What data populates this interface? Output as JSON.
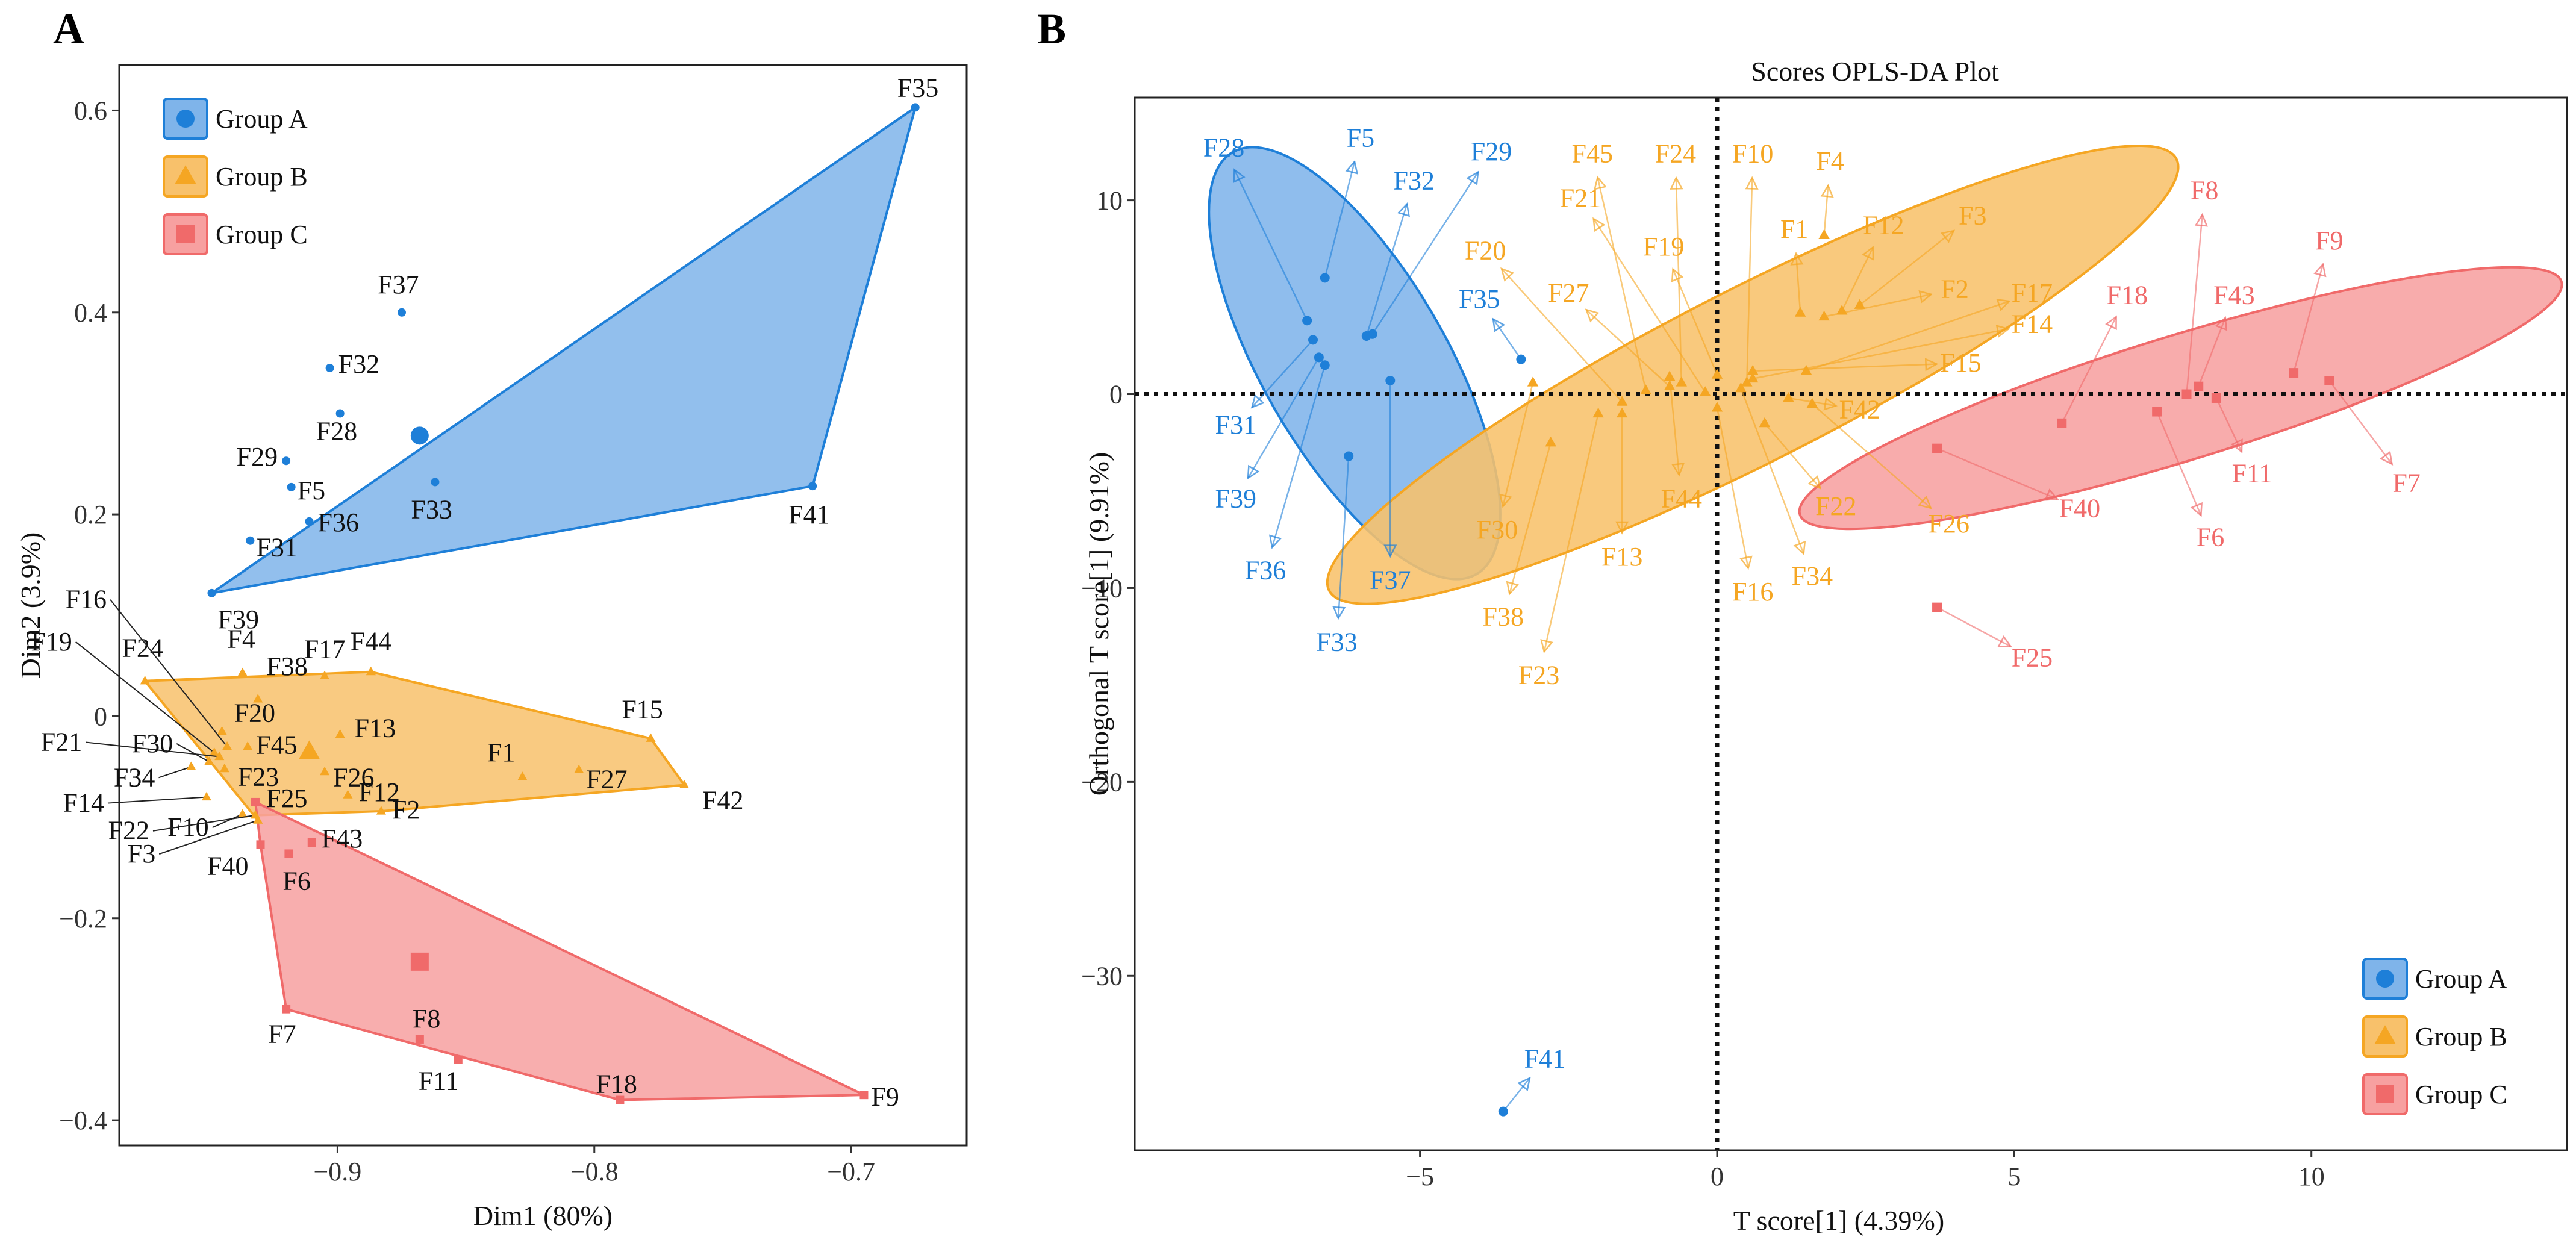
{
  "colors": {
    "A": "#1E7FD8",
    "A_fill": "#7FB4EA",
    "B": "#F5A623",
    "B_fill": "#F8C16B",
    "C": "#F06A6A",
    "C_fill": "#F7A0A0"
  },
  "legend": [
    {
      "group": "A",
      "label": "Group A",
      "shape": "circle"
    },
    {
      "group": "B",
      "label": "Group B",
      "shape": "triangle"
    },
    {
      "group": "C",
      "label": "Group C",
      "shape": "square"
    }
  ],
  "chart_data": [
    {
      "panel": "A",
      "type": "scatter",
      "title": "",
      "xlabel": "Dim1 (80%)",
      "ylabel": "Dim2 (3.9%)",
      "xlim": [
        -0.985,
        -0.655
      ],
      "ylim": [
        -0.425,
        0.645
      ],
      "xticks": [
        -0.9,
        -0.8,
        -0.7
      ],
      "yticks": [
        -0.4,
        -0.2,
        0,
        0.2,
        0.4,
        0.6
      ],
      "xtick_labels": [
        "−0.9",
        "−0.8",
        "−0.7"
      ],
      "ytick_labels": [
        "−0.4",
        "−0.2",
        "0",
        "0.2",
        "0.4",
        "0.6"
      ],
      "hulls": {
        "A": [
          "F39",
          "F35",
          "F41"
        ],
        "B": [
          "F24",
          "F44",
          "F15",
          "F42",
          "F2",
          "F22",
          "F3"
        ],
        "C": [
          "F25",
          "F9",
          "F18",
          "F7",
          "F40"
        ]
      },
      "centroids": [
        {
          "group": "A",
          "x": -0.868,
          "y": 0.278
        },
        {
          "group": "B",
          "x": -0.911,
          "y": -0.035
        },
        {
          "group": "C",
          "x": -0.868,
          "y": -0.243
        }
      ],
      "points": [
        {
          "label": "F35",
          "group": "A",
          "x": -0.675,
          "y": 0.603
        },
        {
          "label": "F37",
          "group": "A",
          "x": -0.875,
          "y": 0.4
        },
        {
          "label": "F32",
          "group": "A",
          "x": -0.903,
          "y": 0.345
        },
        {
          "label": "F28",
          "group": "A",
          "x": -0.899,
          "y": 0.3
        },
        {
          "label": "F29",
          "group": "A",
          "x": -0.92,
          "y": 0.253
        },
        {
          "label": "F5",
          "group": "A",
          "x": -0.918,
          "y": 0.227
        },
        {
          "label": "F36",
          "group": "A",
          "x": -0.911,
          "y": 0.193
        },
        {
          "label": "F31",
          "group": "A",
          "x": -0.934,
          "y": 0.174
        },
        {
          "label": "F33",
          "group": "A",
          "x": -0.862,
          "y": 0.232
        },
        {
          "label": "F41",
          "group": "A",
          "x": -0.715,
          "y": 0.228
        },
        {
          "label": "F39",
          "group": "A",
          "x": -0.949,
          "y": 0.122
        },
        {
          "label": "F24",
          "group": "B",
          "x": -0.975,
          "y": 0.035
        },
        {
          "label": "F4",
          "group": "B",
          "x": -0.937,
          "y": 0.043
        },
        {
          "label": "F38",
          "group": "B",
          "x": -0.931,
          "y": 0.017
        },
        {
          "label": "F44",
          "group": "B",
          "x": -0.887,
          "y": 0.044
        },
        {
          "label": "F17",
          "group": "B",
          "x": -0.905,
          "y": 0.04
        },
        {
          "label": "F20",
          "group": "B",
          "x": -0.945,
          "y": -0.015
        },
        {
          "label": "F13",
          "group": "B",
          "x": -0.899,
          "y": -0.018
        },
        {
          "label": "F45",
          "group": "B",
          "x": -0.935,
          "y": -0.03
        },
        {
          "label": "F26",
          "group": "B",
          "x": -0.905,
          "y": -0.055
        },
        {
          "label": "F16",
          "group": "B",
          "x": -0.943,
          "y": -0.03
        },
        {
          "label": "F19",
          "group": "B",
          "x": -0.948,
          "y": -0.036
        },
        {
          "label": "F21",
          "group": "B",
          "x": -0.946,
          "y": -0.04
        },
        {
          "label": "F30",
          "group": "B",
          "x": -0.95,
          "y": -0.045
        },
        {
          "label": "F34",
          "group": "B",
          "x": -0.957,
          "y": -0.05
        },
        {
          "label": "F23",
          "group": "B",
          "x": -0.944,
          "y": -0.052
        },
        {
          "label": "F14",
          "group": "B",
          "x": -0.951,
          "y": -0.08
        },
        {
          "label": "F10",
          "group": "B",
          "x": -0.937,
          "y": -0.097
        },
        {
          "label": "F22",
          "group": "B",
          "x": -0.932,
          "y": -0.098
        },
        {
          "label": "F3",
          "group": "B",
          "x": -0.931,
          "y": -0.103
        },
        {
          "label": "F12",
          "group": "B",
          "x": -0.896,
          "y": -0.078
        },
        {
          "label": "F2",
          "group": "B",
          "x": -0.883,
          "y": -0.094
        },
        {
          "label": "F1",
          "group": "B",
          "x": -0.828,
          "y": -0.06
        },
        {
          "label": "F27",
          "group": "B",
          "x": -0.806,
          "y": -0.053
        },
        {
          "label": "F15",
          "group": "B",
          "x": -0.778,
          "y": -0.022
        },
        {
          "label": "F42",
          "group": "B",
          "x": -0.765,
          "y": -0.068
        },
        {
          "label": "F25",
          "group": "C",
          "x": -0.932,
          "y": -0.085
        },
        {
          "label": "F40",
          "group": "C",
          "x": -0.93,
          "y": -0.127
        },
        {
          "label": "F6",
          "group": "C",
          "x": -0.919,
          "y": -0.136
        },
        {
          "label": "F43",
          "group": "C",
          "x": -0.91,
          "y": -0.125
        },
        {
          "label": "F7",
          "group": "C",
          "x": -0.92,
          "y": -0.29
        },
        {
          "label": "F8",
          "group": "C",
          "x": -0.868,
          "y": -0.32
        },
        {
          "label": "F11",
          "group": "C",
          "x": -0.853,
          "y": -0.34
        },
        {
          "label": "F18",
          "group": "C",
          "x": -0.79,
          "y": -0.38
        },
        {
          "label": "F9",
          "group": "C",
          "x": -0.695,
          "y": -0.375
        }
      ]
    },
    {
      "panel": "B",
      "type": "scatter",
      "title": "Scores OPLS-DA Plot",
      "xlabel": "T score[1] (4.39%)",
      "ylabel": "Orthogonal T score[1] (9.91%)",
      "xlim": [
        -9.8,
        14.3
      ],
      "ylim": [
        -39.0,
        15.3
      ],
      "xticks": [
        -5,
        0,
        5,
        10
      ],
      "yticks": [
        -30,
        -20,
        -10,
        0,
        10
      ],
      "xtick_labels": [
        "−5",
        "0",
        "5",
        "10"
      ],
      "ytick_labels": [
        "−30",
        "−20",
        "−10",
        "0",
        "10"
      ],
      "ellipses": [
        {
          "group": "A",
          "cx": -6.1,
          "cy": 1.6,
          "rx": 4.1,
          "ry": 1.55,
          "angle": -60
        },
        {
          "group": "B",
          "cx": 0.6,
          "cy": 1.0,
          "rx": 8.0,
          "ry": 1.45,
          "angle": 27
        },
        {
          "group": "C",
          "cx": 7.8,
          "cy": -0.2,
          "rx": 6.7,
          "ry": 1.05,
          "angle": 17
        }
      ],
      "points": [
        {
          "label": "F28",
          "group": "A",
          "x": -6.9,
          "y": 3.8,
          "lx": -8.3,
          "ly": 12.7
        },
        {
          "label": "F5",
          "group": "A",
          "x": -6.6,
          "y": 6.0,
          "lx": -6.0,
          "ly": 13.2
        },
        {
          "label": "F32",
          "group": "A",
          "x": -5.9,
          "y": 3.0,
          "lx": -5.1,
          "ly": 11.0
        },
        {
          "label": "F29",
          "group": "A",
          "x": -5.8,
          "y": 3.1,
          "lx": -3.8,
          "ly": 12.5
        },
        {
          "label": "F35",
          "group": "A",
          "x": -3.3,
          "y": 1.8,
          "lx": -4.0,
          "ly": 4.9
        },
        {
          "label": "F31",
          "group": "A",
          "x": -6.8,
          "y": 2.8,
          "lx": -8.1,
          "ly": -1.6
        },
        {
          "label": "F39",
          "group": "A",
          "x": -6.7,
          "y": 1.9,
          "lx": -8.1,
          "ly": -5.4
        },
        {
          "label": "F36",
          "group": "A",
          "x": -6.6,
          "y": 1.5,
          "lx": -7.6,
          "ly": -9.1
        },
        {
          "label": "F33",
          "group": "A",
          "x": -6.2,
          "y": -3.2,
          "lx": -6.4,
          "ly": -12.8
        },
        {
          "label": "F37",
          "group": "A",
          "x": -5.5,
          "y": 0.7,
          "lx": -5.5,
          "ly": -9.6
        },
        {
          "label": "F41",
          "group": "A",
          "x": -3.6,
          "y": -37.0,
          "lx": -2.9,
          "ly": -34.3
        },
        {
          "label": "F45",
          "group": "B",
          "x": -1.2,
          "y": 0.2,
          "lx": -2.1,
          "ly": 12.4
        },
        {
          "label": "F24",
          "group": "B",
          "x": -0.6,
          "y": 0.6,
          "lx": -0.7,
          "ly": 12.4
        },
        {
          "label": "F10",
          "group": "B",
          "x": 0.5,
          "y": 0.6,
          "lx": 0.6,
          "ly": 12.4
        },
        {
          "label": "F4",
          "group": "B",
          "x": 1.8,
          "y": 8.2,
          "lx": 1.9,
          "ly": 12.0
        },
        {
          "label": "F21",
          "group": "B",
          "x": -0.2,
          "y": 0.1,
          "lx": -2.3,
          "ly": 10.1
        },
        {
          "label": "F1",
          "group": "B",
          "x": 1.4,
          "y": 4.2,
          "lx": 1.3,
          "ly": 8.5
        },
        {
          "label": "F12",
          "group": "B",
          "x": 2.1,
          "y": 4.3,
          "lx": 2.8,
          "ly": 8.7
        },
        {
          "label": "F3",
          "group": "B",
          "x": 2.4,
          "y": 4.6,
          "lx": 4.3,
          "ly": 9.2
        },
        {
          "label": "F20",
          "group": "B",
          "x": -1.6,
          "y": -0.4,
          "lx": -3.9,
          "ly": 7.4
        },
        {
          "label": "F19",
          "group": "B",
          "x": 0.0,
          "y": 1.0,
          "lx": -0.9,
          "ly": 7.6
        },
        {
          "label": "F27",
          "group": "B",
          "x": -0.8,
          "y": 0.4,
          "lx": -2.5,
          "ly": 5.2
        },
        {
          "label": "F2",
          "group": "B",
          "x": 1.8,
          "y": 4.0,
          "lx": 4.0,
          "ly": 5.4
        },
        {
          "label": "F17",
          "group": "B",
          "x": 1.5,
          "y": 1.2,
          "lx": 5.3,
          "ly": 5.2
        },
        {
          "label": "F14",
          "group": "B",
          "x": 0.6,
          "y": 0.8,
          "lx": 5.3,
          "ly": 3.6
        },
        {
          "label": "F15",
          "group": "B",
          "x": 0.6,
          "y": 1.2,
          "lx": 4.1,
          "ly": 1.6
        },
        {
          "label": "F42",
          "group": "B",
          "x": 1.2,
          "y": -0.2,
          "lx": 2.4,
          "ly": -0.8
        },
        {
          "label": "F30",
          "group": "B",
          "x": -3.1,
          "y": 0.6,
          "lx": -3.7,
          "ly": -7.0
        },
        {
          "label": "F38",
          "group": "B",
          "x": -2.8,
          "y": -2.5,
          "lx": -3.6,
          "ly": -11.5
        },
        {
          "label": "F23",
          "group": "B",
          "x": -2.0,
          "y": -1.0,
          "lx": -3.0,
          "ly": -14.5
        },
        {
          "label": "F13",
          "group": "B",
          "x": -1.6,
          "y": -1.0,
          "lx": -1.6,
          "ly": -8.4
        },
        {
          "label": "F44",
          "group": "B",
          "x": -0.8,
          "y": 0.9,
          "lx": -0.6,
          "ly": -5.4
        },
        {
          "label": "F16",
          "group": "B",
          "x": 0.0,
          "y": -0.7,
          "lx": 0.6,
          "ly": -10.2
        },
        {
          "label": "F34",
          "group": "B",
          "x": 0.4,
          "y": 0.3,
          "lx": 1.6,
          "ly": -9.4
        },
        {
          "label": "F22",
          "group": "B",
          "x": 0.8,
          "y": -1.5,
          "lx": 2.0,
          "ly": -5.8
        },
        {
          "label": "F26",
          "group": "B",
          "x": 1.6,
          "y": -0.5,
          "lx": 3.9,
          "ly": -6.7
        },
        {
          "label": "F8",
          "group": "C",
          "x": 7.9,
          "y": 0.0,
          "lx": 8.2,
          "ly": 10.5
        },
        {
          "label": "F9",
          "group": "C",
          "x": 9.7,
          "y": 1.1,
          "lx": 10.3,
          "ly": 7.9
        },
        {
          "label": "F18",
          "group": "C",
          "x": 5.8,
          "y": -1.5,
          "lx": 6.9,
          "ly": 5.1
        },
        {
          "label": "F43",
          "group": "C",
          "x": 8.1,
          "y": 0.4,
          "lx": 8.7,
          "ly": 5.1
        },
        {
          "label": "F40",
          "group": "C",
          "x": 3.7,
          "y": -2.8,
          "lx": 6.1,
          "ly": -5.9
        },
        {
          "label": "F6",
          "group": "C",
          "x": 7.4,
          "y": -0.9,
          "lx": 8.3,
          "ly": -7.4
        },
        {
          "label": "F11",
          "group": "C",
          "x": 8.4,
          "y": -0.2,
          "lx": 9.0,
          "ly": -4.1
        },
        {
          "label": "F7",
          "group": "C",
          "x": 10.3,
          "y": 0.7,
          "lx": 11.6,
          "ly": -4.6
        },
        {
          "label": "F25",
          "group": "C",
          "x": 3.7,
          "y": -11.0,
          "lx": 5.3,
          "ly": -13.6
        }
      ]
    }
  ]
}
